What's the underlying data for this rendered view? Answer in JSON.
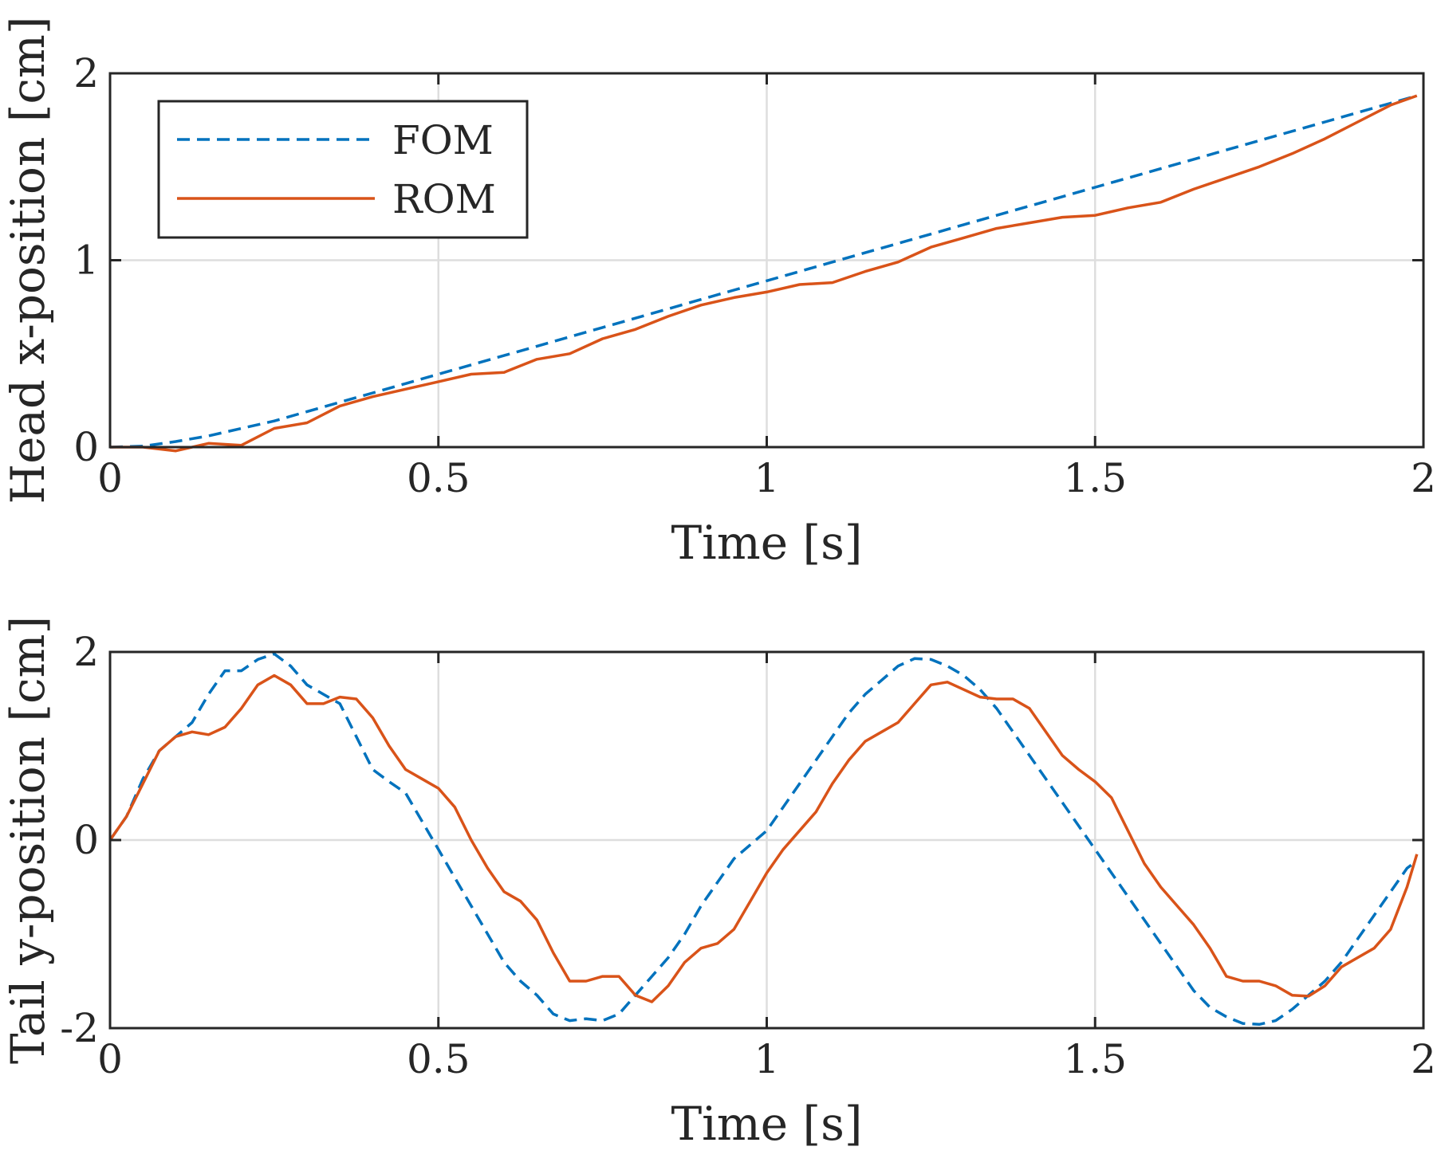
{
  "colors": {
    "fom": "#0072BD",
    "rom": "#D95319",
    "axis": "#262626",
    "grid": "#dedede"
  },
  "chart_data": [
    {
      "type": "line",
      "xlabel": "Time [s]",
      "ylabel": "Head x-position [cm]",
      "xlim": [
        0,
        2
      ],
      "ylim": [
        0,
        2
      ],
      "xticks": [
        "0",
        "0.5",
        "1",
        "1.5",
        "2"
      ],
      "yticks": [
        "0",
        "1",
        "2"
      ],
      "grid": true,
      "legend": {
        "placement": "top-left",
        "entries": [
          "FOM",
          "ROM"
        ]
      },
      "x": [
        0,
        0.05,
        0.1,
        0.15,
        0.2,
        0.25,
        0.3,
        0.35,
        0.4,
        0.45,
        0.5,
        0.55,
        0.6,
        0.65,
        0.7,
        0.75,
        0.8,
        0.85,
        0.9,
        0.95,
        1.0,
        1.05,
        1.1,
        1.15,
        1.2,
        1.25,
        1.3,
        1.35,
        1.4,
        1.45,
        1.5,
        1.55,
        1.6,
        1.65,
        1.7,
        1.75,
        1.8,
        1.85,
        1.9,
        1.95,
        1.99
      ],
      "series": [
        {
          "name": "FOM",
          "style": "dashed",
          "values": [
            0,
            0.005,
            0.03,
            0.06,
            0.1,
            0.14,
            0.19,
            0.24,
            0.29,
            0.34,
            0.39,
            0.44,
            0.49,
            0.54,
            0.59,
            0.64,
            0.69,
            0.74,
            0.79,
            0.84,
            0.89,
            0.94,
            0.99,
            1.04,
            1.09,
            1.14,
            1.19,
            1.24,
            1.29,
            1.34,
            1.39,
            1.44,
            1.49,
            1.54,
            1.59,
            1.64,
            1.69,
            1.74,
            1.79,
            1.84,
            1.88
          ]
        },
        {
          "name": "ROM",
          "style": "solid",
          "values": [
            0,
            0,
            -0.02,
            0.02,
            0.01,
            0.1,
            0.13,
            0.22,
            0.27,
            0.31,
            0.35,
            0.39,
            0.4,
            0.47,
            0.5,
            0.58,
            0.63,
            0.7,
            0.76,
            0.8,
            0.83,
            0.87,
            0.88,
            0.94,
            0.99,
            1.07,
            1.12,
            1.17,
            1.2,
            1.23,
            1.24,
            1.28,
            1.31,
            1.38,
            1.44,
            1.5,
            1.57,
            1.65,
            1.74,
            1.83,
            1.88
          ]
        }
      ]
    },
    {
      "type": "line",
      "xlabel": "Time [s]",
      "ylabel": "Tail y-position [cm]",
      "xlim": [
        0,
        2
      ],
      "ylim": [
        -2,
        2
      ],
      "xticks": [
        "0",
        "0.5",
        "1",
        "1.5",
        "2"
      ],
      "yticks": [
        "-2",
        "0",
        "2"
      ],
      "grid": true,
      "x": [
        0,
        0.025,
        0.05,
        0.075,
        0.1,
        0.125,
        0.15,
        0.175,
        0.2,
        0.225,
        0.25,
        0.275,
        0.3,
        0.325,
        0.35,
        0.375,
        0.4,
        0.425,
        0.45,
        0.475,
        0.5,
        0.525,
        0.55,
        0.575,
        0.6,
        0.625,
        0.65,
        0.675,
        0.7,
        0.725,
        0.75,
        0.775,
        0.8,
        0.825,
        0.85,
        0.875,
        0.9,
        0.925,
        0.95,
        0.975,
        1.0,
        1.025,
        1.05,
        1.075,
        1.1,
        1.125,
        1.15,
        1.175,
        1.2,
        1.225,
        1.25,
        1.275,
        1.3,
        1.325,
        1.35,
        1.375,
        1.4,
        1.425,
        1.45,
        1.475,
        1.5,
        1.525,
        1.55,
        1.575,
        1.6,
        1.625,
        1.65,
        1.675,
        1.7,
        1.725,
        1.75,
        1.775,
        1.8,
        1.825,
        1.85,
        1.875,
        1.9,
        1.925,
        1.95,
        1.975,
        1.99
      ],
      "series": [
        {
          "name": "FOM",
          "style": "dashed",
          "values": [
            0,
            0.25,
            0.65,
            0.95,
            1.1,
            1.25,
            1.55,
            1.8,
            1.8,
            1.92,
            1.98,
            1.85,
            1.65,
            1.55,
            1.45,
            1.1,
            0.75,
            0.62,
            0.5,
            0.2,
            -0.1,
            -0.4,
            -0.7,
            -1.0,
            -1.3,
            -1.5,
            -1.65,
            -1.85,
            -1.92,
            -1.9,
            -1.92,
            -1.85,
            -1.65,
            -1.45,
            -1.25,
            -1.0,
            -0.7,
            -0.45,
            -0.2,
            -0.05,
            0.1,
            0.35,
            0.6,
            0.85,
            1.1,
            1.35,
            1.55,
            1.7,
            1.85,
            1.93,
            1.92,
            1.85,
            1.75,
            1.6,
            1.4,
            1.15,
            0.9,
            0.65,
            0.4,
            0.15,
            -0.1,
            -0.35,
            -0.6,
            -0.85,
            -1.1,
            -1.35,
            -1.6,
            -1.78,
            -1.88,
            -1.95,
            -1.96,
            -1.92,
            -1.8,
            -1.65,
            -1.5,
            -1.3,
            -1.05,
            -0.8,
            -0.55,
            -0.3,
            -0.22
          ]
        },
        {
          "name": "ROM",
          "style": "solid",
          "values": [
            0,
            0.25,
            0.6,
            0.95,
            1.1,
            1.15,
            1.12,
            1.2,
            1.4,
            1.65,
            1.75,
            1.65,
            1.45,
            1.45,
            1.52,
            1.5,
            1.3,
            1.0,
            0.75,
            0.65,
            0.55,
            0.35,
            0.0,
            -0.3,
            -0.55,
            -0.65,
            -0.85,
            -1.2,
            -1.5,
            -1.5,
            -1.45,
            -1.45,
            -1.65,
            -1.72,
            -1.55,
            -1.3,
            -1.15,
            -1.1,
            -0.95,
            -0.65,
            -0.35,
            -0.1,
            0.1,
            0.3,
            0.6,
            0.85,
            1.05,
            1.15,
            1.25,
            1.45,
            1.65,
            1.68,
            1.6,
            1.52,
            1.5,
            1.5,
            1.4,
            1.15,
            0.9,
            0.75,
            0.62,
            0.45,
            0.1,
            -0.25,
            -0.5,
            -0.7,
            -0.9,
            -1.15,
            -1.45,
            -1.5,
            -1.5,
            -1.55,
            -1.65,
            -1.66,
            -1.55,
            -1.35,
            -1.25,
            -1.15,
            -0.95,
            -0.5,
            -0.15
          ]
        }
      ]
    }
  ]
}
